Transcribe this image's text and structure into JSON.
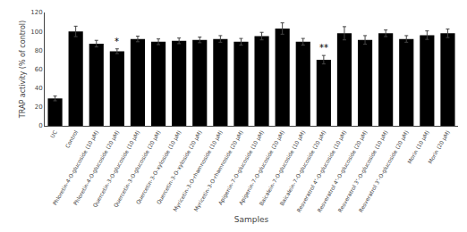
{
  "chart_data": {
    "type": "bar",
    "categories": [
      "UC",
      "Control",
      "Phloretin-4-O-glucoside (10 μM)",
      "Phloretin-4-O-glucoside (20 μM)",
      "Quercetin-3-O-glucoside (10 μM)",
      "Quercetin-3-O-glucoside (20 μM)",
      "Quercetin-3-O-xyloside (10 μM)",
      "Quercetin-3-O-xyloside (20 μM)",
      "Myricetin-3-O-rhamnoside (10 μM)",
      "Myricetin-3-O-rhamnoside (20 μM)",
      "Apigenin-7-O-glucoside (10 μM)",
      "Apigenin-7-O-glucoside (20 μM)",
      "Baicalein-7-O-glucoside (10 μM)",
      "Baicalein-7-O-glucoside (20 μM)",
      "Resveratrol 4’-O-glucoside (10 μM)",
      "Resveratrol 4’-O-glucoside (20 μM)",
      "Resveratrol 3’-O-glucoside (10 μM)",
      "Resveratrol 3’-O-glucoside (20 μM)",
      "Morin (10 μM)",
      "Morin (20 μM)"
    ],
    "values": [
      29,
      100,
      87,
      79,
      92,
      89,
      90,
      91,
      92,
      89,
      95,
      103,
      89,
      70,
      98,
      91,
      98,
      92,
      96,
      98
    ],
    "errors": [
      2.5,
      5.5,
      3.5,
      2.5,
      3.0,
      3.0,
      3.0,
      3.0,
      3.5,
      3.5,
      4.0,
      6.0,
      3.5,
      4.5,
      7.0,
      4.5,
      3.5,
      3.5,
      4.5,
      4.5
    ],
    "annotations": [
      {
        "category": "Phloretin-4-O-glucoside (20 μM)",
        "text": "*"
      },
      {
        "category": "Baicalein-7-O-glucoside (20 μM)",
        "text": "**"
      }
    ],
    "color": "#000000",
    "xlabel": "Samples",
    "ylabel": "TRAP activity (% of control)",
    "ylim": [
      0,
      120
    ],
    "yticks": [
      0,
      20,
      40,
      60,
      80,
      100,
      120
    ],
    "grid": false
  }
}
